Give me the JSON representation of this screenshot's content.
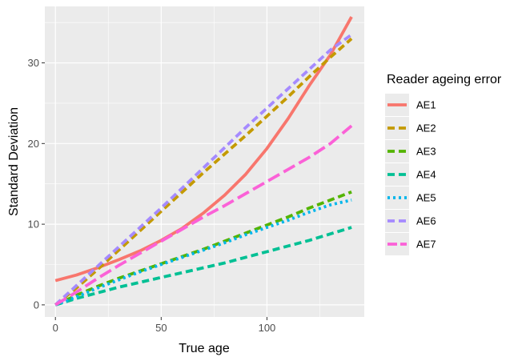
{
  "chart_data": {
    "type": "line",
    "xlabel": "True age",
    "ylabel": "Standard Deviation",
    "xlim": [
      -5,
      146
    ],
    "ylim": [
      -1.5,
      37
    ],
    "x_ticks": [
      0,
      50,
      100
    ],
    "y_ticks": [
      0,
      10,
      20,
      30
    ],
    "grid": true,
    "legend": {
      "title": "Reader ageing error",
      "position": "right"
    },
    "series": [
      {
        "name": "AE1",
        "color": "#F8766D",
        "dash": "solid",
        "x": [
          0,
          10,
          20,
          30,
          40,
          50,
          60,
          70,
          80,
          90,
          100,
          110,
          120,
          130,
          140
        ],
        "y": [
          3.0,
          3.7,
          4.6,
          5.6,
          6.7,
          8.0,
          9.5,
          11.4,
          13.6,
          16.2,
          19.4,
          23.1,
          27.2,
          31.0,
          35.7
        ]
      },
      {
        "name": "AE2",
        "color": "#C49A00",
        "dash": "dashed",
        "x": [
          0,
          10,
          20,
          30,
          40,
          50,
          60,
          70,
          80,
          90,
          100,
          110,
          120,
          130,
          140
        ],
        "y": [
          0.0,
          2.1,
          4.4,
          6.8,
          9.2,
          11.6,
          14.0,
          16.4,
          18.7,
          21.0,
          23.4,
          25.8,
          28.3,
          30.7,
          33.0
        ]
      },
      {
        "name": "AE3",
        "color": "#53B400",
        "dash": "dashed",
        "x": [
          0,
          10,
          20,
          30,
          40,
          50,
          60,
          70,
          80,
          90,
          100,
          110,
          120,
          130,
          140
        ],
        "y": [
          0.0,
          1.2,
          2.3,
          3.3,
          4.2,
          5.1,
          6.0,
          6.9,
          7.9,
          8.9,
          9.9,
          10.9,
          12.0,
          13.0,
          14.0
        ]
      },
      {
        "name": "AE4",
        "color": "#00C094",
        "dash": "dashed",
        "x": [
          0,
          10,
          20,
          30,
          40,
          50,
          60,
          70,
          80,
          90,
          100,
          110,
          120,
          130,
          140
        ],
        "y": [
          0.0,
          0.8,
          1.5,
          2.2,
          2.8,
          3.4,
          4.0,
          4.6,
          5.2,
          5.9,
          6.6,
          7.3,
          8.0,
          8.8,
          9.6
        ]
      },
      {
        "name": "AE5",
        "color": "#00B6EB",
        "dash": "dotted",
        "x": [
          0,
          10,
          20,
          30,
          40,
          50,
          60,
          70,
          80,
          90,
          100,
          110,
          120,
          130,
          140
        ],
        "y": [
          0.0,
          1.0,
          2.1,
          3.1,
          4.1,
          5.0,
          5.9,
          6.8,
          7.7,
          8.7,
          9.6,
          10.5,
          11.5,
          12.4,
          13.0
        ]
      },
      {
        "name": "AE6",
        "color": "#A58AFF",
        "dash": "dashed",
        "x": [
          0,
          10,
          20,
          30,
          40,
          50,
          60,
          70,
          80,
          90,
          100,
          110,
          120,
          130,
          140
        ],
        "y": [
          0.0,
          2.4,
          4.8,
          7.2,
          9.6,
          12.0,
          14.5,
          17.0,
          19.5,
          22.0,
          24.4,
          26.8,
          29.2,
          31.6,
          33.5
        ]
      },
      {
        "name": "AE7",
        "color": "#FB61D7",
        "dash": "longdash",
        "x": [
          0,
          10,
          20,
          30,
          40,
          50,
          60,
          70,
          80,
          90,
          100,
          110,
          120,
          130,
          140
        ],
        "y": [
          0.0,
          1.6,
          3.3,
          4.9,
          6.4,
          7.9,
          9.4,
          10.9,
          12.3,
          13.8,
          15.3,
          16.8,
          18.3,
          20.0,
          22.2
        ]
      }
    ]
  }
}
